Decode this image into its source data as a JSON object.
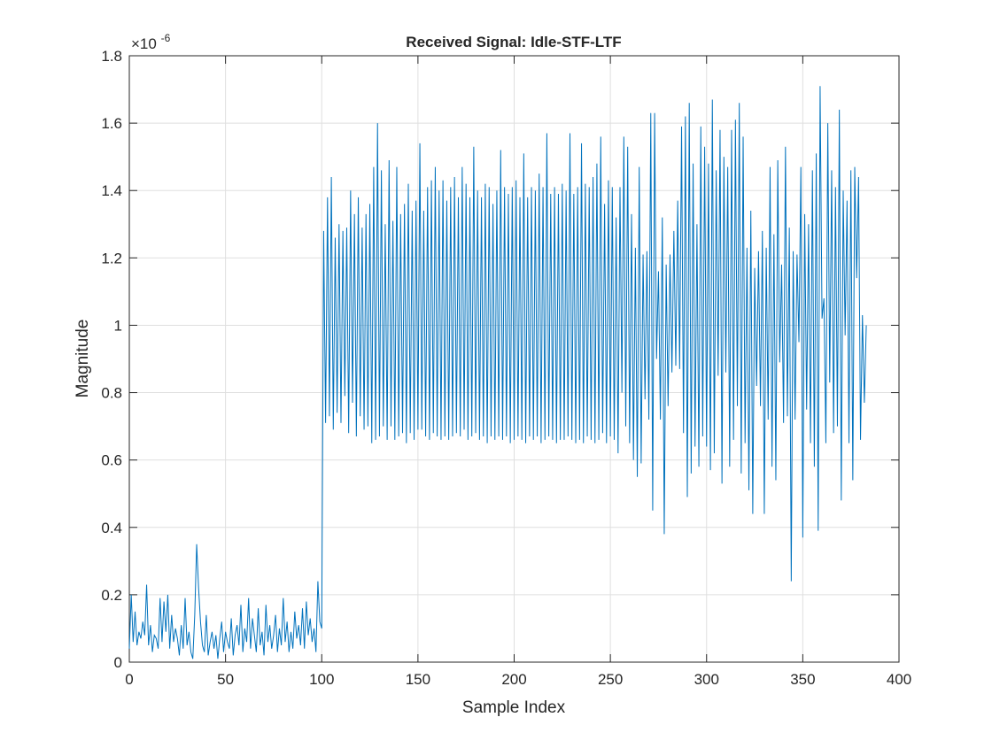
{
  "chart_data": {
    "type": "line",
    "title": "Received Signal: Idle-STF-LTF",
    "xlabel": "Sample Index",
    "ylabel": "Magnitude",
    "xlim": [
      0,
      400
    ],
    "ylim": [
      0,
      1.8
    ],
    "xticks": [
      0,
      50,
      100,
      150,
      200,
      250,
      300,
      350,
      400
    ],
    "xtick_labels": [
      "0",
      "50",
      "100",
      "150",
      "200",
      "250",
      "300",
      "350",
      "400"
    ],
    "yticks": [
      0,
      0.2,
      0.4,
      0.6,
      0.8,
      1.0,
      1.2,
      1.4,
      1.6,
      1.8
    ],
    "ytick_labels": [
      "0",
      "0.2",
      "0.4",
      "0.6",
      "0.8",
      "1",
      "1.2",
      "1.4",
      "1.6",
      "1.8"
    ],
    "y_multiplier": {
      "base": "×10",
      "exponent": "-6"
    },
    "grid": true,
    "line_color": "#0072BD",
    "series": [
      {
        "values": [
          0.04,
          0.2,
          0.06,
          0.15,
          0.05,
          0.09,
          0.07,
          0.12,
          0.08,
          0.23,
          0.05,
          0.11,
          0.03,
          0.08,
          0.07,
          0.04,
          0.19,
          0.06,
          0.18,
          0.09,
          0.2,
          0.04,
          0.14,
          0.06,
          0.1,
          0.07,
          0.02,
          0.11,
          0.04,
          0.19,
          0.05,
          0.09,
          0.03,
          0.01,
          0.14,
          0.35,
          0.22,
          0.12,
          0.05,
          0.03,
          0.14,
          0.02,
          0.06,
          0.09,
          0.04,
          0.08,
          0.01,
          0.07,
          0.12,
          0.03,
          0.09,
          0.06,
          0.04,
          0.13,
          0.02,
          0.08,
          0.11,
          0.05,
          0.17,
          0.03,
          0.1,
          0.06,
          0.19,
          0.04,
          0.13,
          0.08,
          0.03,
          0.16,
          0.05,
          0.09,
          0.02,
          0.17,
          0.06,
          0.11,
          0.04,
          0.08,
          0.14,
          0.03,
          0.1,
          0.05,
          0.19,
          0.06,
          0.12,
          0.03,
          0.09,
          0.04,
          0.15,
          0.07,
          0.11,
          0.05,
          0.16,
          0.04,
          0.18,
          0.08,
          0.13,
          0.06,
          0.1,
          0.03,
          0.24,
          0.12,
          0.1,
          1.28,
          0.71,
          1.38,
          0.73,
          1.44,
          0.69,
          1.26,
          0.74,
          1.3,
          0.71,
          1.28,
          0.79,
          1.29,
          0.68,
          1.4,
          0.77,
          1.33,
          0.67,
          1.38,
          0.73,
          1.29,
          0.69,
          1.33,
          0.7,
          1.36,
          0.65,
          1.47,
          0.66,
          1.6,
          0.67,
          1.46,
          0.7,
          1.3,
          0.66,
          1.49,
          0.7,
          1.31,
          0.66,
          1.47,
          0.67,
          1.33,
          0.68,
          1.36,
          0.65,
          1.42,
          0.68,
          1.34,
          0.66,
          1.37,
          0.69,
          1.54,
          0.69,
          1.34,
          0.67,
          1.41,
          0.66,
          1.43,
          0.68,
          1.47,
          0.67,
          1.4,
          0.66,
          1.43,
          0.67,
          1.37,
          0.66,
          1.41,
          0.67,
          1.44,
          0.68,
          1.38,
          0.67,
          1.47,
          0.69,
          1.42,
          0.66,
          1.38,
          0.67,
          1.53,
          0.68,
          1.4,
          0.66,
          1.38,
          0.67,
          1.42,
          0.65,
          1.41,
          0.67,
          1.36,
          0.66,
          1.4,
          0.67,
          1.52,
          0.66,
          1.41,
          0.67,
          1.39,
          0.65,
          1.41,
          0.66,
          1.43,
          0.67,
          1.38,
          0.66,
          1.51,
          0.65,
          1.38,
          0.67,
          1.41,
          0.66,
          1.4,
          0.67,
          1.45,
          0.65,
          1.41,
          0.66,
          1.57,
          0.67,
          1.39,
          0.66,
          1.41,
          0.65,
          1.39,
          0.66,
          1.42,
          0.66,
          1.4,
          0.67,
          1.57,
          0.66,
          1.39,
          0.65,
          1.41,
          0.66,
          1.54,
          0.65,
          1.42,
          0.67,
          1.41,
          0.66,
          1.44,
          0.65,
          1.48,
          0.66,
          1.56,
          0.68,
          1.36,
          0.65,
          1.43,
          0.67,
          1.41,
          0.66,
          1.32,
          0.62,
          1.41,
          0.8,
          1.56,
          0.7,
          1.53,
          0.65,
          1.33,
          0.6,
          1.23,
          0.55,
          1.47,
          0.59,
          1.21,
          0.78,
          1.22,
          0.72,
          1.63,
          0.45,
          1.63,
          0.9,
          1.16,
          0.72,
          1.32,
          0.38,
          1.18,
          0.76,
          1.21,
          0.86,
          1.28,
          0.88,
          1.37,
          0.87,
          1.59,
          0.68,
          1.62,
          0.49,
          1.66,
          0.56,
          1.48,
          0.64,
          1.3,
          0.58,
          1.59,
          0.67,
          1.53,
          0.64,
          1.48,
          0.57,
          1.67,
          0.62,
          1.46,
          0.85,
          1.58,
          0.53,
          1.5,
          0.86,
          1.47,
          0.58,
          1.58,
          0.66,
          1.61,
          0.76,
          1.66,
          0.56,
          1.56,
          0.65,
          1.23,
          0.51,
          1.34,
          0.44,
          1.17,
          0.82,
          1.22,
          0.76,
          1.28,
          0.44,
          1.23,
          0.72,
          1.47,
          0.58,
          1.27,
          0.54,
          1.49,
          0.89,
          1.18,
          0.71,
          1.53,
          0.73,
          1.29,
          0.24,
          1.22,
          0.72,
          1.21,
          0.95,
          1.47,
          0.37,
          1.33,
          0.75,
          1.3,
          0.65,
          1.46,
          0.58,
          1.51,
          0.39,
          1.71,
          1.02,
          1.08,
          0.65,
          1.6,
          0.83,
          1.46,
          0.68,
          1.41,
          0.7,
          1.64,
          0.48,
          1.4,
          0.97,
          1.37,
          0.65,
          1.46,
          0.54,
          1.47,
          1.14,
          1.44,
          0.66,
          1.03,
          0.77,
          1.0
        ]
      }
    ]
  }
}
